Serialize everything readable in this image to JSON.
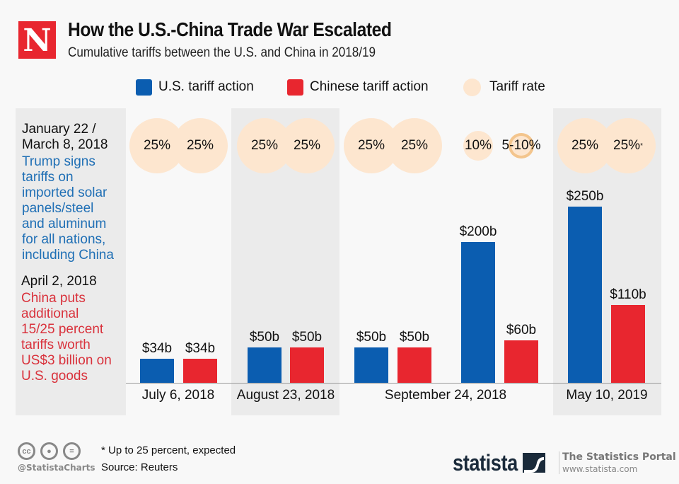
{
  "header": {
    "logo_letter": "N",
    "title": "How the U.S.-China Trade War Escalated",
    "subtitle": "Cumulative tariffs between the U.S. and China in 2018/19"
  },
  "colors": {
    "us": "#0b5db0",
    "china": "#e8262f",
    "tariff_rate": "#fde6cf",
    "side_blue": "#1f6fb5",
    "side_red": "#d9323c"
  },
  "side_panel": {
    "event1_date": "January 22 / March 8, 2018",
    "event1_date_lines": [
      "January 22 /",
      "March 8, 2018"
    ],
    "event1_text_lines": [
      "Trump signs",
      "tariffs on",
      "imported solar",
      "panels/steel",
      "and aluminum",
      "for all nations,",
      "including China"
    ],
    "event2_date": "April 2, 2018",
    "event2_text_lines": [
      "China puts",
      "additional",
      "15/25 percent",
      "tariffs worth",
      "US$3 billion on",
      "U.S. goods"
    ]
  },
  "chart_data": {
    "type": "bar",
    "title": "How the U.S.-China Trade War Escalated",
    "subtitle": "Cumulative tariffs between the U.S. and China in 2018/19",
    "xlabel": "",
    "ylabel": "",
    "unit": "billion US$",
    "legend": [
      "U.S. tariff action",
      "Chinese tariff action",
      "Tariff rate"
    ],
    "legend_position": "top",
    "grid": false,
    "ylim": [
      0,
      250
    ],
    "groups": [
      {
        "date": "July 6, 2018",
        "bars": [
          {
            "series": "U.S. tariff action",
            "value": 34,
            "label": "$34b",
            "rate": "25%"
          },
          {
            "series": "Chinese tariff action",
            "value": 34,
            "label": "$34b",
            "rate": "25%"
          }
        ]
      },
      {
        "date": "August 23, 2018",
        "bars": [
          {
            "series": "U.S. tariff action",
            "value": 50,
            "label": "$50b",
            "rate": "25%"
          },
          {
            "series": "Chinese tariff action",
            "value": 50,
            "label": "$50b",
            "rate": "25%"
          }
        ]
      },
      {
        "date": "September 24, 2018",
        "bars": [
          {
            "series": "U.S. tariff action",
            "value": 50,
            "label": "$50b",
            "rate": "25%"
          },
          {
            "series": "Chinese tariff action",
            "value": 50,
            "label": "$50b",
            "rate": "25%"
          },
          {
            "series": "U.S. tariff action",
            "value": 200,
            "label": "$200b",
            "rate": "10%"
          },
          {
            "series": "Chinese tariff action",
            "value": 60,
            "label": "$60b",
            "rate": "5-10%"
          }
        ]
      },
      {
        "date": "May 10, 2019",
        "bars": [
          {
            "series": "U.S. tariff action",
            "value": 250,
            "label": "$250b",
            "rate": "25%"
          },
          {
            "series": "Chinese tariff action",
            "value": 110,
            "label": "$110b",
            "rate": "25%",
            "rate_note": "*"
          }
        ]
      }
    ]
  },
  "footer": {
    "note": "* Up to 25 percent, expected",
    "source": "Source: Reuters",
    "handle": "@StatistaCharts",
    "brand": "statista",
    "portal": "The Statistics Portal",
    "url": "www.statista.com",
    "license_icons": [
      "cc-icon",
      "by-icon",
      "nd-icon"
    ]
  }
}
